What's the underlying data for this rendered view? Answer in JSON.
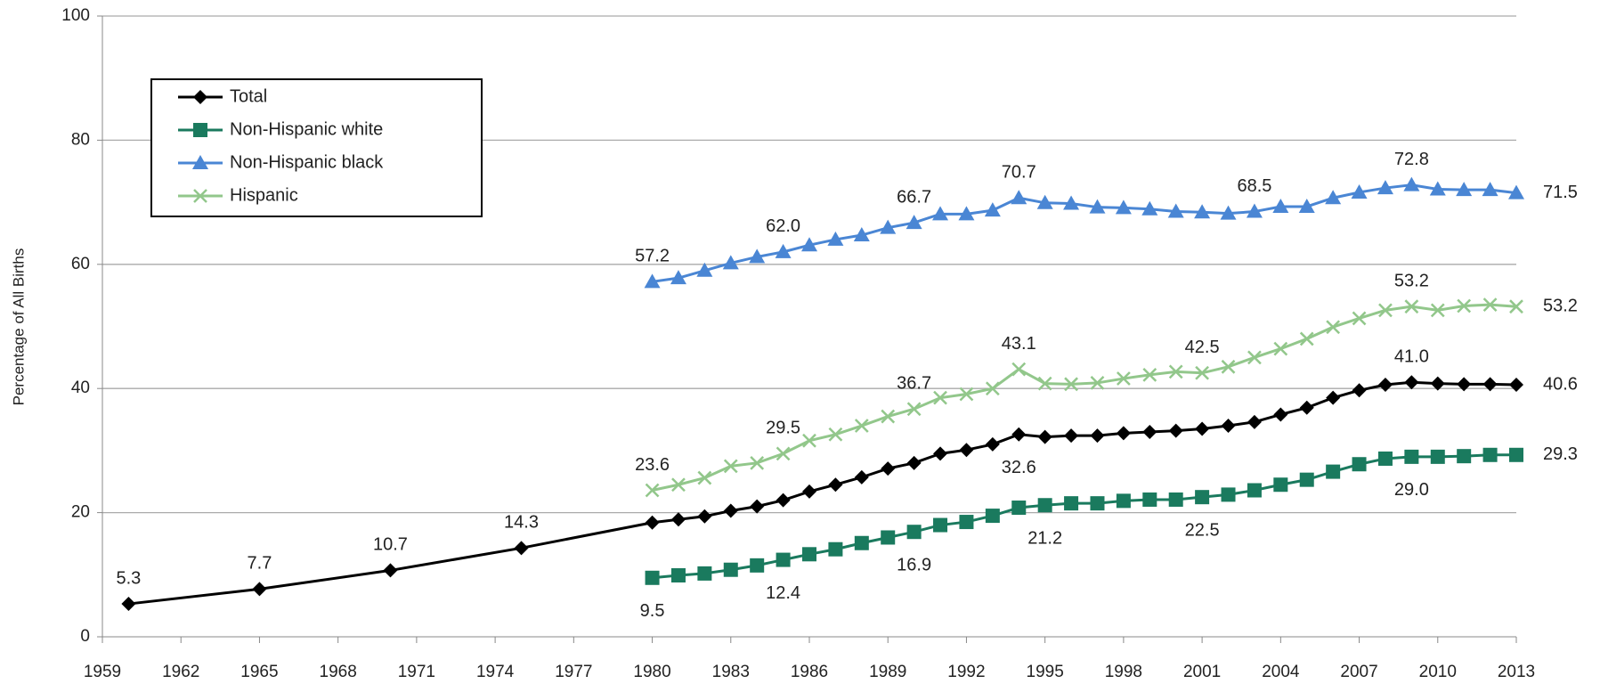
{
  "chart_data": {
    "type": "line",
    "y_label": "Percentage of All Births",
    "xlim": [
      1959,
      2013
    ],
    "xticks": [
      1959,
      1962,
      1965,
      1968,
      1971,
      1974,
      1977,
      1980,
      1983,
      1986,
      1989,
      1992,
      1995,
      1998,
      2001,
      2004,
      2007,
      2010,
      2013
    ],
    "ylim": [
      0,
      100
    ],
    "yticks": [
      0,
      20,
      40,
      60,
      80,
      100
    ],
    "grid": true,
    "legend": "upper left",
    "series": [
      {
        "name": "Total",
        "color": "#000000",
        "marker": "diamond",
        "x": [
          1960,
          1965,
          1970,
          1975,
          1980,
          1981,
          1982,
          1983,
          1984,
          1985,
          1986,
          1987,
          1988,
          1989,
          1990,
          1991,
          1992,
          1993,
          1994,
          1995,
          1996,
          1997,
          1998,
          1999,
          2000,
          2001,
          2002,
          2003,
          2004,
          2005,
          2006,
          2007,
          2008,
          2009,
          2010,
          2011,
          2012,
          2013
        ],
        "values": [
          5.3,
          7.7,
          10.7,
          14.3,
          18.4,
          18.9,
          19.4,
          20.3,
          21.0,
          22.0,
          23.4,
          24.5,
          25.7,
          27.1,
          28.0,
          29.5,
          30.1,
          31.0,
          32.6,
          32.2,
          32.4,
          32.4,
          32.8,
          33.0,
          33.2,
          33.5,
          34.0,
          34.6,
          35.8,
          36.9,
          38.5,
          39.7,
          40.6,
          41.0,
          40.8,
          40.7,
          40.7,
          40.6
        ],
        "value_labels": [
          "5.3",
          "7.7",
          "10.7",
          "14.3",
          null,
          null,
          null,
          null,
          null,
          null,
          null,
          null,
          null,
          null,
          null,
          null,
          null,
          null,
          "32.6",
          null,
          null,
          null,
          null,
          null,
          null,
          null,
          null,
          null,
          null,
          null,
          null,
          null,
          null,
          "41.0",
          null,
          null,
          null,
          "40.6"
        ]
      },
      {
        "name": "Non-Hispanic white",
        "color": "#1a7a5e",
        "marker": "square",
        "x": [
          1980,
          1981,
          1982,
          1983,
          1984,
          1985,
          1986,
          1987,
          1988,
          1989,
          1990,
          1991,
          1992,
          1993,
          1994,
          1995,
          1996,
          1997,
          1998,
          1999,
          2000,
          2001,
          2002,
          2003,
          2004,
          2005,
          2006,
          2007,
          2008,
          2009,
          2010,
          2011,
          2012,
          2013
        ],
        "values": [
          9.5,
          9.9,
          10.2,
          10.8,
          11.5,
          12.4,
          13.3,
          14.1,
          15.1,
          16.0,
          16.9,
          18.0,
          18.5,
          19.5,
          20.8,
          21.2,
          21.5,
          21.5,
          21.9,
          22.1,
          22.1,
          22.5,
          22.9,
          23.6,
          24.5,
          25.3,
          26.6,
          27.8,
          28.7,
          29.0,
          29.0,
          29.1,
          29.3,
          29.3
        ],
        "value_labels": [
          "9.5",
          null,
          null,
          null,
          null,
          "12.4",
          null,
          null,
          null,
          null,
          "16.9",
          null,
          null,
          null,
          null,
          "21.2",
          null,
          null,
          null,
          null,
          null,
          "22.5",
          null,
          null,
          null,
          null,
          null,
          null,
          null,
          "29.0",
          null,
          null,
          null,
          "29.3"
        ]
      },
      {
        "name": "Non-Hispanic black",
        "color": "#4a86d4",
        "marker": "triangle",
        "x": [
          1980,
          1981,
          1982,
          1983,
          1984,
          1985,
          1986,
          1987,
          1988,
          1989,
          1990,
          1991,
          1992,
          1993,
          1994,
          1995,
          1996,
          1997,
          1998,
          1999,
          2000,
          2001,
          2002,
          2003,
          2004,
          2005,
          2006,
          2007,
          2008,
          2009,
          2010,
          2011,
          2012,
          2013
        ],
        "values": [
          57.2,
          57.8,
          59.0,
          60.2,
          61.2,
          62.0,
          63.1,
          64.0,
          64.7,
          65.9,
          66.7,
          68.1,
          68.1,
          68.7,
          70.7,
          69.9,
          69.8,
          69.2,
          69.1,
          68.9,
          68.5,
          68.4,
          68.2,
          68.5,
          69.3,
          69.3,
          70.7,
          71.6,
          72.3,
          72.8,
          72.1,
          72.0,
          72.0,
          71.5
        ],
        "value_labels": [
          "57.2",
          null,
          null,
          null,
          null,
          "62.0",
          null,
          null,
          null,
          null,
          "66.7",
          null,
          null,
          null,
          "70.7",
          null,
          null,
          null,
          null,
          null,
          null,
          null,
          null,
          "68.5",
          null,
          null,
          null,
          null,
          null,
          "72.8",
          null,
          null,
          null,
          "71.5"
        ]
      },
      {
        "name": "Hispanic",
        "color": "#92c78b",
        "marker": "x",
        "x": [
          1980,
          1981,
          1982,
          1983,
          1984,
          1985,
          1986,
          1987,
          1988,
          1989,
          1990,
          1991,
          1992,
          1993,
          1994,
          1995,
          1996,
          1997,
          1998,
          1999,
          2000,
          2001,
          2002,
          2003,
          2004,
          2005,
          2006,
          2007,
          2008,
          2009,
          2010,
          2011,
          2012,
          2013
        ],
        "values": [
          23.6,
          24.5,
          25.6,
          27.5,
          28.0,
          29.5,
          31.6,
          32.6,
          34.0,
          35.5,
          36.7,
          38.5,
          39.1,
          40.0,
          43.1,
          40.8,
          40.7,
          40.9,
          41.6,
          42.2,
          42.7,
          42.5,
          43.5,
          45.0,
          46.4,
          48.0,
          49.9,
          51.3,
          52.6,
          53.2,
          52.6,
          53.3,
          53.5,
          53.2
        ],
        "value_labels": [
          "23.6",
          null,
          null,
          null,
          null,
          "29.5",
          null,
          null,
          null,
          null,
          "36.7",
          null,
          null,
          null,
          "43.1",
          null,
          null,
          null,
          null,
          null,
          null,
          "42.5",
          null,
          null,
          null,
          null,
          null,
          null,
          null,
          "53.2",
          null,
          null,
          null,
          "53.2"
        ]
      }
    ]
  }
}
